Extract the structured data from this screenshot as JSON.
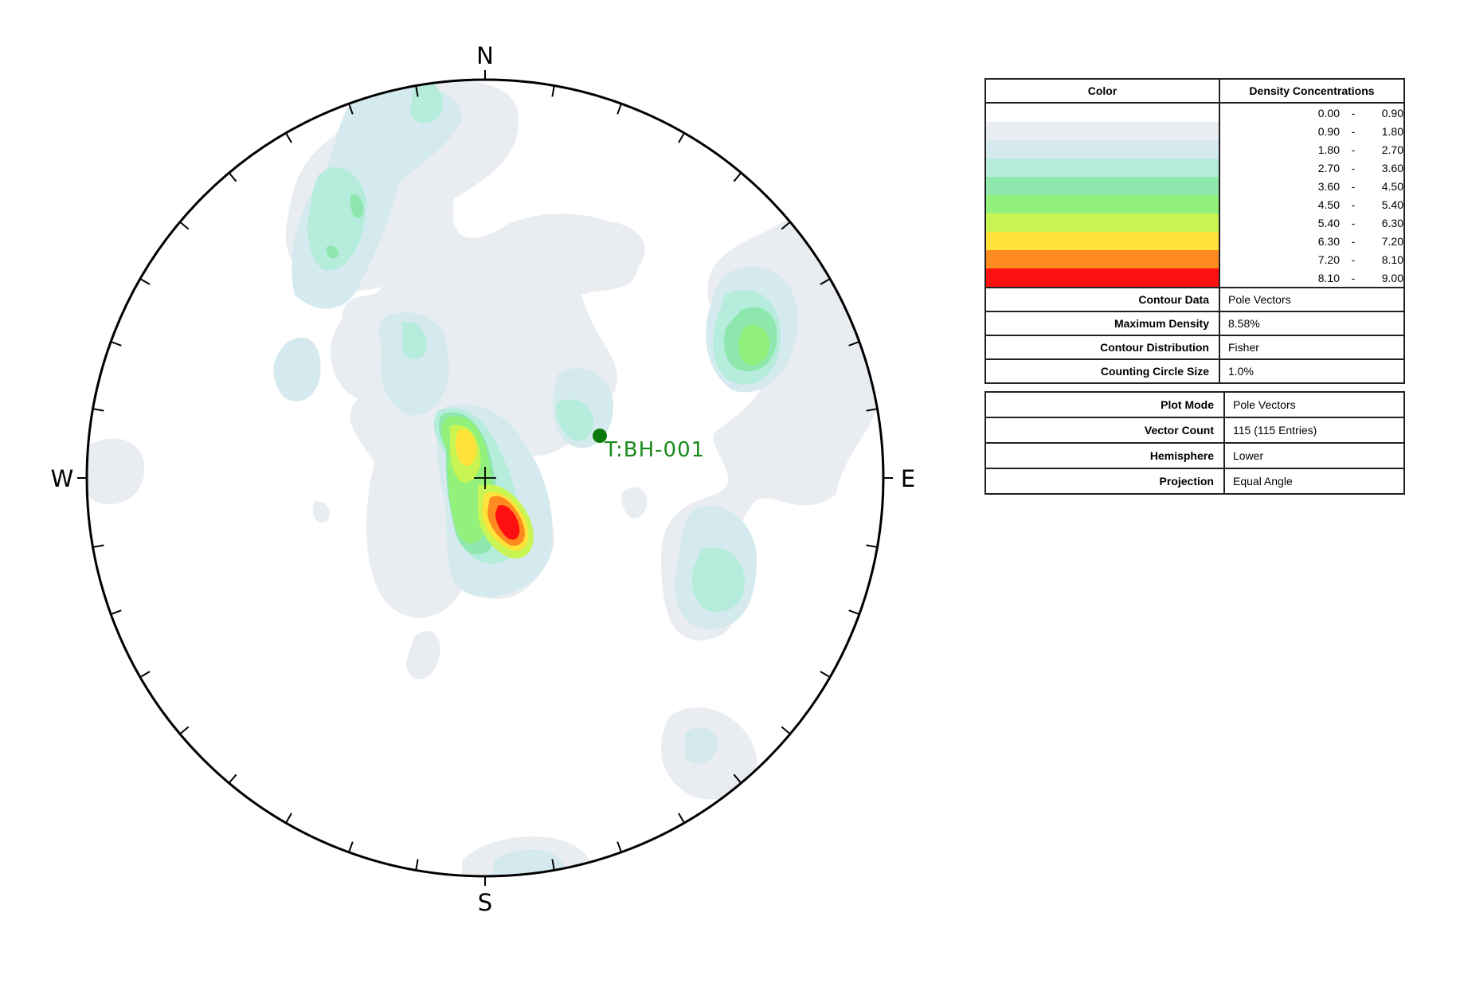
{
  "compass": {
    "north": "N",
    "south": "S",
    "east": "E",
    "west": "W"
  },
  "marker": {
    "label": "T:BH-001",
    "color": "#0a7a0a",
    "label_color": "#1a8a1a"
  },
  "legend": {
    "color_header": "Color",
    "density_header": "Density Concentrations",
    "ranges": [
      {
        "lo": "0.00",
        "hi": "0.90",
        "color": "#ffffff"
      },
      {
        "lo": "0.90",
        "hi": "1.80",
        "color": "#e9ecf0"
      },
      {
        "lo": "1.80",
        "hi": "2.70",
        "color": "#d5eaee"
      },
      {
        "lo": "2.70",
        "hi": "3.60",
        "color": "#b5ecdc"
      },
      {
        "lo": "3.60",
        "hi": "4.50",
        "color": "#8ee8ae"
      },
      {
        "lo": "4.50",
        "hi": "5.40",
        "color": "#93f07a"
      },
      {
        "lo": "5.40",
        "hi": "6.30",
        "color": "#c8f552"
      },
      {
        "lo": "6.30",
        "hi": "7.20",
        "color": "#ffe23a"
      },
      {
        "lo": "7.20",
        "hi": "8.10",
        "color": "#ff8a1f"
      },
      {
        "lo": "8.10",
        "hi": "9.00",
        "color": "#ff1010"
      }
    ],
    "dash": "-",
    "contour_props": [
      {
        "label": "Contour Data",
        "value": "Pole Vectors"
      },
      {
        "label": "Maximum Density",
        "value": "8.58%"
      },
      {
        "label": "Contour Distribution",
        "value": "Fisher"
      },
      {
        "label": "Counting Circle Size",
        "value": "1.0%"
      }
    ],
    "plot_props": [
      {
        "label": "Plot Mode",
        "value": "Pole Vectors"
      },
      {
        "label": "Vector Count",
        "value": "115 (115 Entries)"
      },
      {
        "label": "Hemisphere",
        "value": "Lower"
      },
      {
        "label": "Projection",
        "value": "Equal Angle"
      }
    ]
  }
}
